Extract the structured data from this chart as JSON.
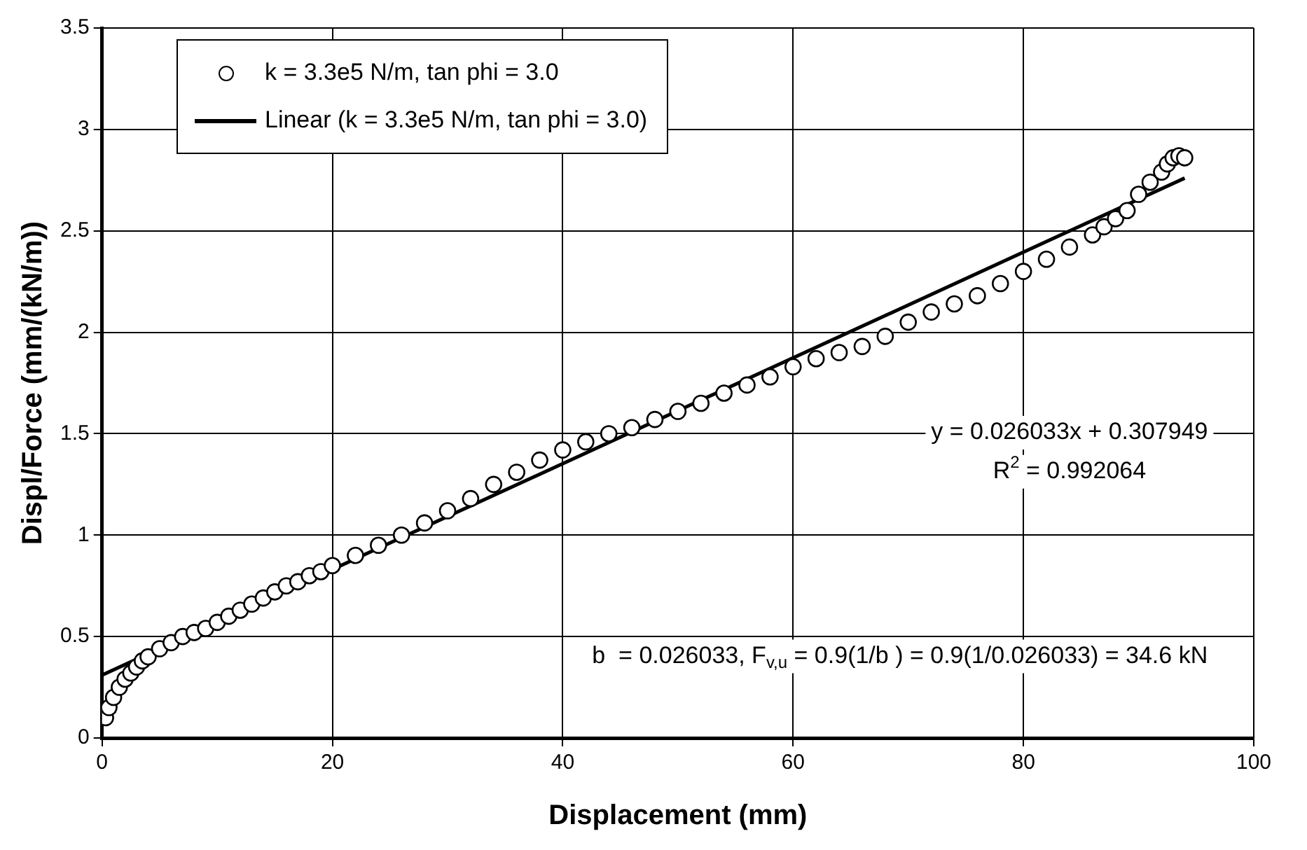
{
  "chart_data": {
    "type": "scatter",
    "xlabel": "Displacement (mm)",
    "ylabel": "Displ/Force (mm/(kN/m))",
    "xlim": [
      0,
      100
    ],
    "xticks": [
      0,
      20,
      40,
      60,
      80,
      100
    ],
    "ylim": [
      0,
      3.5
    ],
    "yticks": [
      0,
      0.5,
      1,
      1.5,
      2,
      2.5,
      3,
      3.5
    ],
    "grid": true,
    "legend": "top left",
    "marker": "circle",
    "series": [
      {
        "name": "k = 3.3e5 N/m, tan phi = 3.0",
        "type": "scatter",
        "color": "#000000",
        "x": [
          0.3,
          0.6,
          1,
          1.5,
          2,
          2.5,
          3,
          3.5,
          4,
          5,
          6,
          7,
          8,
          9,
          10,
          11,
          12,
          13,
          14,
          15,
          16,
          17,
          18,
          19,
          20,
          22,
          24,
          26,
          28,
          30,
          32,
          34,
          36,
          38,
          40,
          42,
          44,
          46,
          48,
          50,
          52,
          54,
          56,
          58,
          60,
          62,
          64,
          66,
          68,
          70,
          72,
          74,
          76,
          78,
          80,
          82,
          84,
          86,
          87,
          88,
          89,
          90,
          91,
          92,
          92.5,
          93,
          93.5,
          94
        ],
        "values": [
          0.1,
          0.15,
          0.2,
          0.25,
          0.29,
          0.32,
          0.35,
          0.38,
          0.4,
          0.44,
          0.47,
          0.5,
          0.52,
          0.54,
          0.57,
          0.6,
          0.63,
          0.66,
          0.69,
          0.72,
          0.75,
          0.77,
          0.8,
          0.82,
          0.85,
          0.9,
          0.95,
          1.0,
          1.06,
          1.12,
          1.18,
          1.25,
          1.31,
          1.37,
          1.42,
          1.46,
          1.5,
          1.53,
          1.57,
          1.61,
          1.65,
          1.7,
          1.74,
          1.78,
          1.83,
          1.87,
          1.9,
          1.93,
          1.98,
          2.05,
          2.1,
          2.14,
          2.18,
          2.24,
          2.3,
          2.36,
          2.42,
          2.48,
          2.52,
          2.56,
          2.6,
          2.68,
          2.74,
          2.79,
          2.83,
          2.86,
          2.87,
          2.86
        ]
      },
      {
        "name": "Linear (k = 3.3e5 N/m, tan phi = 3.0)",
        "type": "line",
        "color": "#000000",
        "marker": "none",
        "x": [
          0,
          94
        ],
        "values": [
          0.31,
          2.76
        ]
      }
    ],
    "annotations": [
      "y = 0.026033x + 0.307949",
      "R$^{2}$ = 0.992064",
      "b  = 0.026033, F$_{v,u}$ = 0.9(1/b ) = 0.9(1/0.026033) = 34.6 kN"
    ]
  }
}
